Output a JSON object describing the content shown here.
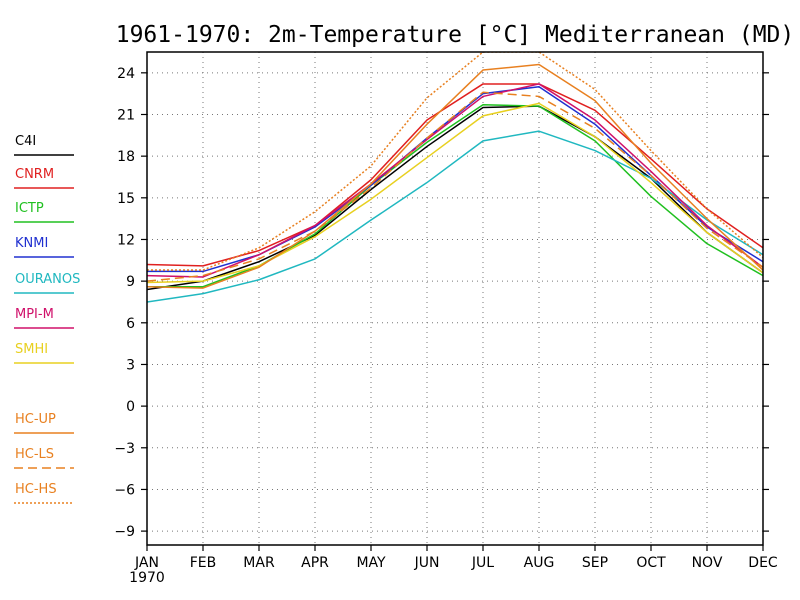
{
  "chart_data": {
    "type": "line",
    "title": "1961-1970: 2m-Temperature [°C] Mediterranean (MD)",
    "xlabel": "",
    "ylabel": "",
    "x_year_label": "1970",
    "categories": [
      "JAN",
      "FEB",
      "MAR",
      "APR",
      "MAY",
      "JUN",
      "JUL",
      "AUG",
      "SEP",
      "OCT",
      "NOV",
      "DEC"
    ],
    "ylim": [
      -10,
      25.5
    ],
    "yticks": [
      -9,
      -6,
      -3,
      0,
      3,
      6,
      9,
      12,
      15,
      18,
      21,
      24
    ],
    "grid": true,
    "legend_placement": "left",
    "series": [
      {
        "name": "C4I",
        "color": "#000000",
        "dash": "solid",
        "values": [
          8.4,
          9.0,
          10.4,
          12.3,
          15.6,
          18.7,
          21.5,
          21.6,
          19.4,
          16.4,
          12.5,
          9.6
        ]
      },
      {
        "name": "CNRM",
        "color": "#e02020",
        "dash": "solid",
        "values": [
          10.2,
          10.1,
          11.2,
          13.0,
          16.3,
          20.6,
          23.2,
          23.2,
          21.3,
          17.8,
          14.2,
          11.4
        ]
      },
      {
        "name": "ICTP",
        "color": "#20c020",
        "dash": "solid",
        "values": [
          8.6,
          8.6,
          10.1,
          12.4,
          15.9,
          19.0,
          21.7,
          21.6,
          19.1,
          15.1,
          11.7,
          9.4
        ]
      },
      {
        "name": "KNMI",
        "color": "#2030d0",
        "dash": "solid",
        "values": [
          9.7,
          9.7,
          10.9,
          12.9,
          15.9,
          19.3,
          22.5,
          23.0,
          20.3,
          16.6,
          12.9,
          10.4
        ]
      },
      {
        "name": "OURANOS",
        "color": "#20b8c0",
        "dash": "solid",
        "values": [
          7.5,
          8.1,
          9.1,
          10.6,
          13.4,
          16.1,
          19.1,
          19.8,
          18.4,
          16.4,
          13.4,
          10.9
        ]
      },
      {
        "name": "MPI-M",
        "color": "#d0106a",
        "dash": "solid",
        "values": [
          9.4,
          9.3,
          10.9,
          13.0,
          16.0,
          19.2,
          22.3,
          23.2,
          20.6,
          16.9,
          13.0,
          10.0
        ]
      },
      {
        "name": "SMHI",
        "color": "#e8d020",
        "dash": "solid",
        "values": [
          8.9,
          9.0,
          10.1,
          12.2,
          14.9,
          17.9,
          20.9,
          21.8,
          19.4,
          16.1,
          12.5,
          9.6
        ]
      },
      {
        "name": "HC-UP",
        "color": "#e88020",
        "dash": "solid",
        "values": [
          8.6,
          8.5,
          10.0,
          12.6,
          16.0,
          20.3,
          24.2,
          24.6,
          22.0,
          17.5,
          13.5,
          9.8
        ]
      },
      {
        "name": "HC-LS",
        "color": "#e88020",
        "dash": "dashed",
        "values": [
          9.0,
          9.4,
          10.6,
          12.6,
          15.7,
          19.3,
          22.6,
          22.3,
          20.0,
          16.6,
          12.8,
          10.0
        ]
      },
      {
        "name": "HC-HS",
        "color": "#e88020",
        "dash": "dotted",
        "values": [
          9.8,
          9.8,
          11.4,
          14.0,
          17.3,
          22.2,
          25.5,
          25.5,
          22.8,
          18.4,
          14.2,
          10.7
        ]
      }
    ]
  }
}
